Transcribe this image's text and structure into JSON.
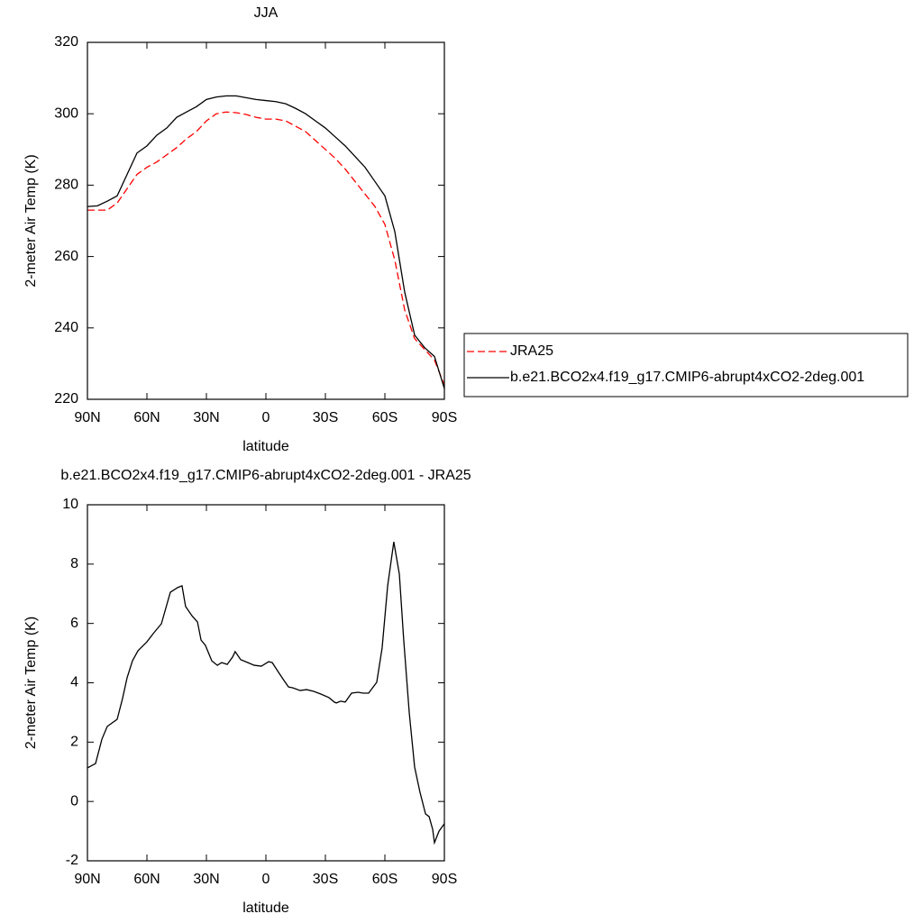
{
  "chart_data": [
    {
      "type": "line",
      "title": "JJA",
      "xlabel": "latitude",
      "ylabel": "2-meter Air Temp (K)",
      "x": [
        90,
        85,
        80,
        75,
        70,
        65,
        60,
        55,
        50,
        45,
        40,
        35,
        30,
        25,
        20,
        15,
        10,
        5,
        0,
        -5,
        -10,
        -15,
        -20,
        -25,
        -30,
        -35,
        -40,
        -45,
        -50,
        -55,
        -60,
        -65,
        -70,
        -75,
        -80,
        -85,
        -90
      ],
      "series": [
        {
          "name": "JRA25",
          "color": "#ff0000",
          "dash": "dashed",
          "values": [
            273,
            273,
            273,
            275,
            279,
            283,
            285,
            286.5,
            288.5,
            290.5,
            293,
            295,
            298,
            300,
            300.5,
            300.3,
            299.8,
            299,
            298.5,
            298.5,
            298,
            296.5,
            295,
            292.5,
            290,
            287.5,
            284.5,
            281,
            277.5,
            274,
            269,
            259,
            245,
            237,
            234,
            231,
            224
          ]
        },
        {
          "name": "b.e21.BCO2x4.f19_g17.CMIP6-abrupt4xCO2-2deg.001",
          "color": "#000000",
          "dash": "solid",
          "values": [
            274,
            274.2,
            275.5,
            277,
            283,
            289,
            291,
            294,
            296,
            299,
            300.5,
            302,
            304,
            304.7,
            305,
            305,
            304.5,
            304,
            303.7,
            303.4,
            302.8,
            301.5,
            300,
            298,
            296,
            293.5,
            291,
            288,
            285,
            281,
            277,
            267,
            250,
            238,
            234.5,
            232,
            223
          ]
        }
      ],
      "xlim": [
        90,
        -90
      ],
      "xticks": [
        {
          "value": 90,
          "label": "90N"
        },
        {
          "value": 60,
          "label": "60N"
        },
        {
          "value": 30,
          "label": "30N"
        },
        0,
        {
          "value": -30,
          "label": "30S"
        },
        {
          "value": -60,
          "label": "60S"
        },
        {
          "value": -90,
          "label": "90S"
        }
      ],
      "ylim": [
        220,
        320
      ],
      "yticks": [
        220,
        240,
        260,
        280,
        300,
        320
      ],
      "legend": "right"
    },
    {
      "type": "line",
      "title": "b.e21.BCO2x4.f19_g17.CMIP6-abrupt4xCO2-2deg.001 - JRA25",
      "xlabel": "latitude",
      "ylabel": "2-meter Air Temp (K)",
      "x": [
        90,
        85.9,
        82.7,
        80,
        75,
        72.3,
        70,
        67.3,
        64.5,
        60,
        56.8,
        52.7,
        48.2,
        44.5,
        42.3,
        40.5,
        37.3,
        34.5,
        32.7,
        30.5,
        27.3,
        24.5,
        22.3,
        19.5,
        16.8,
        15.5,
        12.7,
        9.1,
        5.9,
        2.3,
        -1.4,
        -3.2,
        -6.4,
        -9.1,
        -11.4,
        -13.6,
        -17.3,
        -20.5,
        -24.1,
        -27.7,
        -31.8,
        -34.5,
        -35.5,
        -37.7,
        -40,
        -43.2,
        -46.4,
        -49.1,
        -51.8,
        -55.9,
        -58.6,
        -61.4,
        -64.5,
        -67.3,
        -69.5,
        -72.3,
        -75,
        -77.7,
        -80.5,
        -82.3,
        -84.1,
        -85,
        -87.3,
        -90
      ],
      "color": "#000000",
      "values": [
        1.13,
        1.28,
        2.1,
        2.53,
        2.77,
        3.47,
        4.17,
        4.74,
        5.08,
        5.38,
        5.66,
        5.99,
        7.05,
        7.21,
        7.27,
        6.57,
        6.26,
        6.05,
        5.44,
        5.26,
        4.74,
        4.59,
        4.68,
        4.62,
        4.87,
        5.05,
        4.78,
        4.68,
        4.59,
        4.56,
        4.71,
        4.68,
        4.35,
        4.08,
        3.86,
        3.83,
        3.74,
        3.77,
        3.71,
        3.62,
        3.5,
        3.35,
        3.32,
        3.38,
        3.35,
        3.65,
        3.68,
        3.65,
        3.65,
        4.02,
        5.17,
        7.27,
        8.75,
        7.66,
        5.44,
        2.98,
        1.16,
        0.31,
        -0.42,
        -0.51,
        -0.94,
        -1.39,
        -1.0,
        -0.75
      ],
      "xlim": [
        90,
        -90
      ],
      "xticks": [
        {
          "value": 90,
          "label": "90N"
        },
        {
          "value": 60,
          "label": "60N"
        },
        {
          "value": 30,
          "label": "30N"
        },
        0,
        {
          "value": -30,
          "label": "30S"
        },
        {
          "value": -60,
          "label": "60S"
        },
        {
          "value": -90,
          "label": "90S"
        }
      ],
      "ylim": [
        -2,
        10
      ],
      "yticks": [
        -2,
        0,
        2,
        4,
        6,
        8,
        10
      ]
    }
  ]
}
